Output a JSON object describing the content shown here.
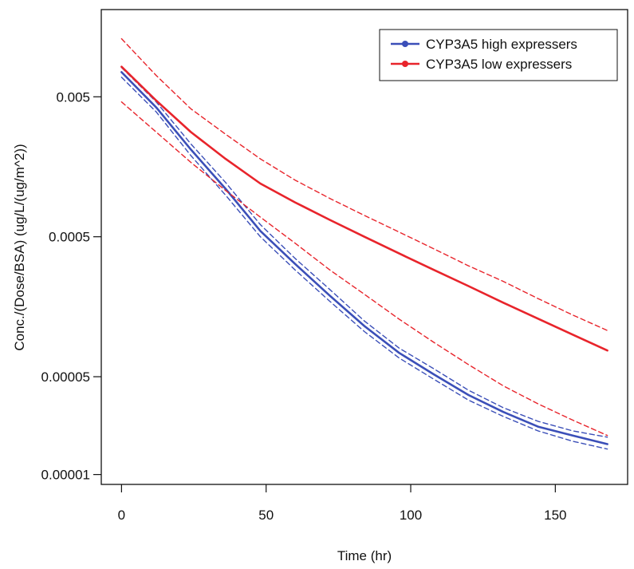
{
  "chart_data": {
    "type": "line",
    "title": "",
    "xlabel": "Time (hr)",
    "ylabel": "Conc./(Dose/BSA) (ug/L/(ug/m^2))",
    "y_scale": "log",
    "xlim": [
      -7,
      175
    ],
    "ylim": [
      8.5e-06,
      0.021
    ],
    "x_ticks": [
      {
        "value": 0,
        "label": "0"
      },
      {
        "value": 50,
        "label": "50"
      },
      {
        "value": 100,
        "label": "100"
      },
      {
        "value": 150,
        "label": "150"
      }
    ],
    "y_ticks": [
      {
        "value": 0.005,
        "label": "0.005"
      },
      {
        "value": 0.0005,
        "label": "0.0005"
      },
      {
        "value": 5e-05,
        "label": "0.00005"
      },
      {
        "value": 1e-05,
        "label": "0.00001"
      }
    ],
    "grid": false,
    "legend_position": "top-right",
    "series": [
      {
        "name": "CYP3A5 high expressers",
        "color": "#3b4fb8",
        "style": "solid",
        "x": [
          0,
          12,
          24,
          36,
          48,
          60,
          72,
          84,
          96,
          108,
          120,
          132,
          144,
          156,
          168
        ],
        "y": [
          0.0075,
          0.0042,
          0.0021,
          0.0011,
          0.00055,
          0.00032,
          0.00019,
          0.000115,
          7.4e-05,
          5.2e-05,
          3.7e-05,
          2.8e-05,
          2.2e-05,
          1.9e-05,
          1.65e-05
        ]
      },
      {
        "name": "",
        "color": "#3b4fb8",
        "style": "dashed",
        "x": [
          0,
          12,
          24,
          36,
          48,
          60,
          72,
          84,
          96,
          108,
          120,
          132,
          144,
          156,
          168
        ],
        "y": [
          0.0081,
          0.0046,
          0.0023,
          0.00122,
          0.00061,
          0.00035,
          0.00021,
          0.000125,
          8e-05,
          5.7e-05,
          4e-05,
          3e-05,
          2.4e-05,
          2.05e-05,
          1.85e-05
        ]
      },
      {
        "name": "",
        "color": "#3b4fb8",
        "style": "dashed",
        "x": [
          0,
          12,
          24,
          36,
          48,
          60,
          72,
          84,
          96,
          108,
          120,
          132,
          144,
          156,
          168
        ],
        "y": [
          0.0069,
          0.0039,
          0.0019,
          0.00099,
          0.0005,
          0.00029,
          0.000173,
          0.000105,
          6.8e-05,
          4.8e-05,
          3.4e-05,
          2.6e-05,
          2.05e-05,
          1.73e-05,
          1.52e-05
        ]
      },
      {
        "name": "CYP3A5 low expressers",
        "color": "#e8242b",
        "style": "solid",
        "x": [
          0,
          12,
          24,
          36,
          48,
          60,
          72,
          84,
          96,
          108,
          120,
          132,
          144,
          156,
          168
        ],
        "y": [
          0.0082,
          0.0047,
          0.0028,
          0.0018,
          0.0012,
          0.00088,
          0.00066,
          0.0005,
          0.00038,
          0.00029,
          0.000222,
          0.000169,
          0.00013,
          0.0001,
          7.7e-05
        ]
      },
      {
        "name": "",
        "color": "#e8242b",
        "style": "dashed",
        "x": [
          0,
          12,
          24,
          36,
          48,
          60,
          72,
          84,
          96,
          108,
          120,
          132,
          144,
          156,
          168
        ],
        "y": [
          0.013,
          0.0071,
          0.0041,
          0.0027,
          0.0018,
          0.00127,
          0.00094,
          0.00071,
          0.00054,
          0.00041,
          0.00031,
          0.00024,
          0.000181,
          0.000138,
          0.000107
        ]
      },
      {
        "name": "",
        "color": "#e8242b",
        "style": "dashed",
        "x": [
          0,
          12,
          24,
          36,
          48,
          60,
          72,
          84,
          96,
          108,
          120,
          132,
          144,
          156,
          168
        ],
        "y": [
          0.0046,
          0.0028,
          0.0017,
          0.00107,
          0.00069,
          0.00045,
          0.00029,
          0.000194,
          0.000129,
          8.8e-05,
          6.1e-05,
          4.3e-05,
          3.2e-05,
          2.45e-05,
          1.9e-05
        ]
      }
    ]
  }
}
